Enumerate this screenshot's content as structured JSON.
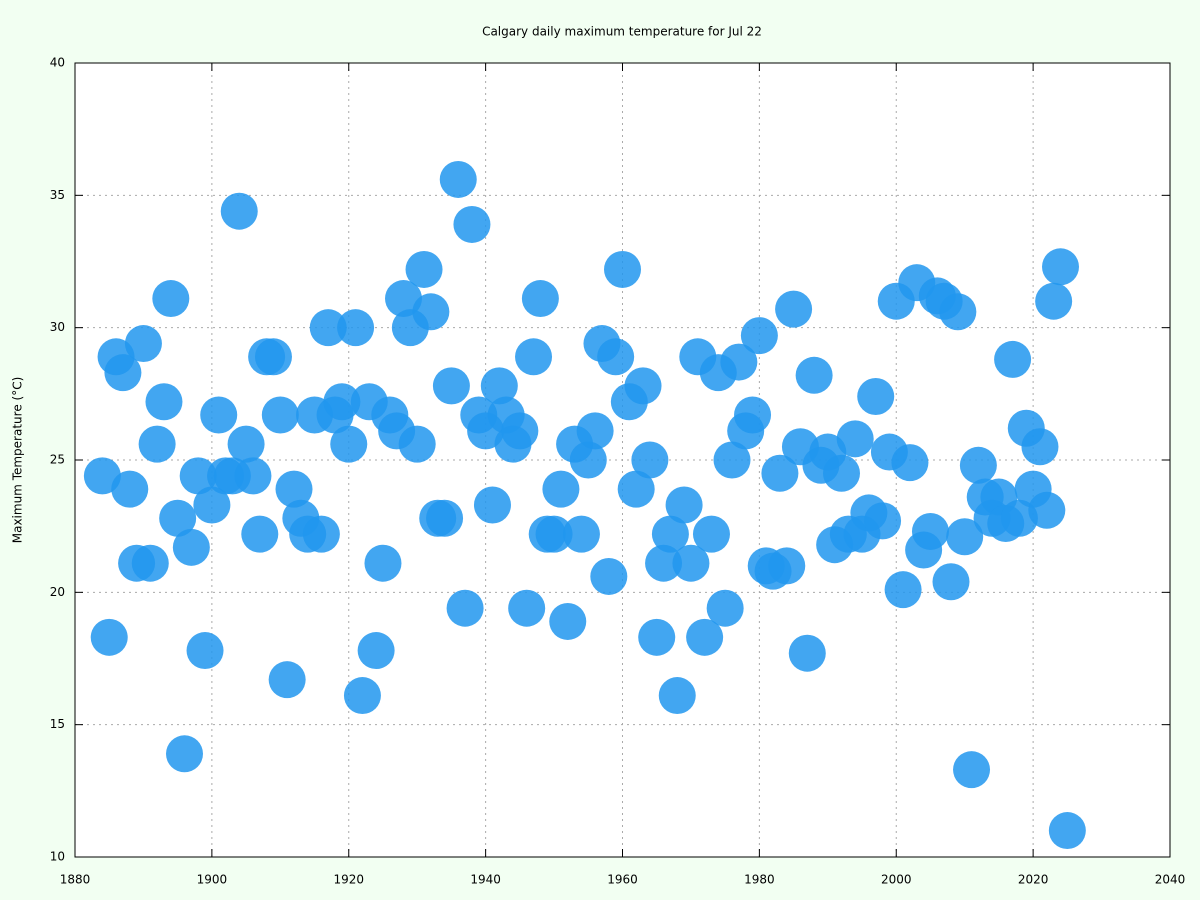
{
  "chart_data": {
    "type": "scatter",
    "title": "Calgary daily maximum temperature for Jul 22",
    "y_label": "Maximum Temperature (°C)",
    "x": [
      1884,
      1885,
      1886,
      1887,
      1888,
      1889,
      1890,
      1891,
      1892,
      1893,
      1894,
      1895,
      1896,
      1897,
      1898,
      1899,
      1900,
      1901,
      1902,
      1903,
      1904,
      1905,
      1906,
      1907,
      1908,
      1909,
      1910,
      1911,
      1912,
      1913,
      1914,
      1915,
      1916,
      1917,
      1918,
      1919,
      1920,
      1921,
      1922,
      1923,
      1924,
      1925,
      1926,
      1927,
      1928,
      1929,
      1930,
      1931,
      1932,
      1933,
      1934,
      1935,
      1936,
      1937,
      1938,
      1939,
      1940,
      1941,
      1942,
      1943,
      1944,
      1945,
      1946,
      1947,
      1948,
      1949,
      1950,
      1951,
      1952,
      1953,
      1954,
      1955,
      1956,
      1957,
      1958,
      1959,
      1960,
      1961,
      1962,
      1963,
      1964,
      1965,
      1966,
      1967,
      1968,
      1969,
      1970,
      1971,
      1972,
      1973,
      1974,
      1975,
      1976,
      1977,
      1978,
      1979,
      1980,
      1981,
      1982,
      1983,
      1984,
      1985,
      1986,
      1987,
      1988,
      1989,
      1990,
      1991,
      1992,
      1993,
      1994,
      1995,
      1996,
      1997,
      1998,
      1999,
      2000,
      2001,
      2002,
      2003,
      2004,
      2005,
      2006,
      2007,
      2008,
      2009,
      2010,
      2011,
      2012,
      2013,
      2014,
      2015,
      2016,
      2017,
      2018,
      2019,
      2020,
      2021,
      2022,
      2023,
      2024,
      2025
    ],
    "series": [
      {
        "color": "#2196ee",
        "values": [
          24.4,
          18.3,
          28.9,
          28.3,
          23.9,
          21.1,
          29.4,
          21.1,
          25.6,
          27.2,
          31.1,
          22.8,
          13.9,
          21.7,
          24.4,
          17.8,
          23.3,
          26.7,
          24.4,
          24.4,
          34.4,
          25.6,
          24.4,
          22.2,
          28.9,
          28.9,
          26.7,
          16.7,
          23.9,
          22.8,
          22.2,
          26.7,
          22.2,
          30.0,
          26.7,
          27.2,
          25.6,
          30.0,
          16.1,
          27.2,
          17.8,
          21.1,
          26.7,
          26.1,
          31.1,
          30.0,
          25.6,
          32.2,
          30.6,
          22.8,
          22.8,
          27.8,
          35.6,
          19.4,
          33.9,
          26.7,
          26.1,
          23.3,
          27.8,
          26.7,
          25.6,
          26.1,
          19.4,
          28.9,
          31.1,
          22.2,
          22.2,
          23.9,
          18.9,
          25.6,
          22.2,
          25.0,
          26.1,
          29.4,
          20.6,
          28.9,
          32.2,
          27.2,
          23.9,
          27.8,
          25.0,
          18.3,
          21.1,
          22.2,
          16.1,
          23.3,
          21.1,
          28.9,
          18.3,
          22.2,
          28.3,
          19.4,
          25.0,
          28.7,
          26.1,
          26.7,
          29.7,
          21.0,
          20.8,
          24.5,
          21.0,
          30.7,
          25.5,
          17.7,
          28.2,
          24.8,
          25.3,
          21.8,
          24.5,
          22.2,
          25.8,
          22.2,
          23.0,
          27.4,
          22.7,
          25.3,
          31.0,
          20.1,
          24.9,
          31.7,
          21.6,
          22.3,
          31.2,
          31.0,
          20.4,
          30.6,
          22.1,
          13.3,
          24.8,
          23.6,
          22.8,
          23.6,
          22.6,
          28.8,
          22.8,
          26.2,
          23.9,
          25.5,
          23.1,
          31.0,
          32.3,
          11.0
        ]
      }
    ],
    "xlim": [
      1880,
      2040
    ],
    "xticks": [
      1880,
      1900,
      1920,
      1940,
      1960,
      1980,
      2000,
      2020,
      2040
    ],
    "ylim": [
      10,
      40
    ],
    "yticks": [
      10,
      15,
      20,
      25,
      30,
      35,
      40
    ],
    "grid": true
  }
}
